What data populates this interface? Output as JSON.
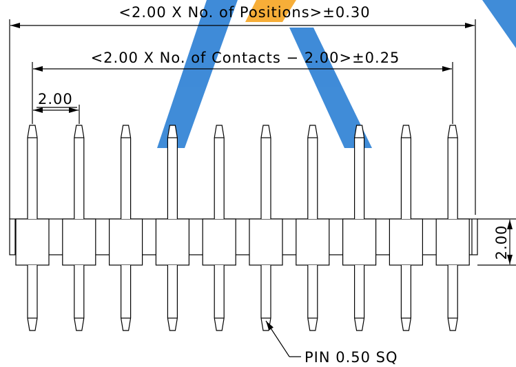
{
  "dimensions": {
    "overall_length": "<2.00 X No. of Positions>±0.30",
    "contact_span": "<2.00 X No. of Contacts − 2.00>±0.25",
    "pitch": "2.00",
    "housing_height": "2.00"
  },
  "callout": "PIN 0.50 SQ"
}
